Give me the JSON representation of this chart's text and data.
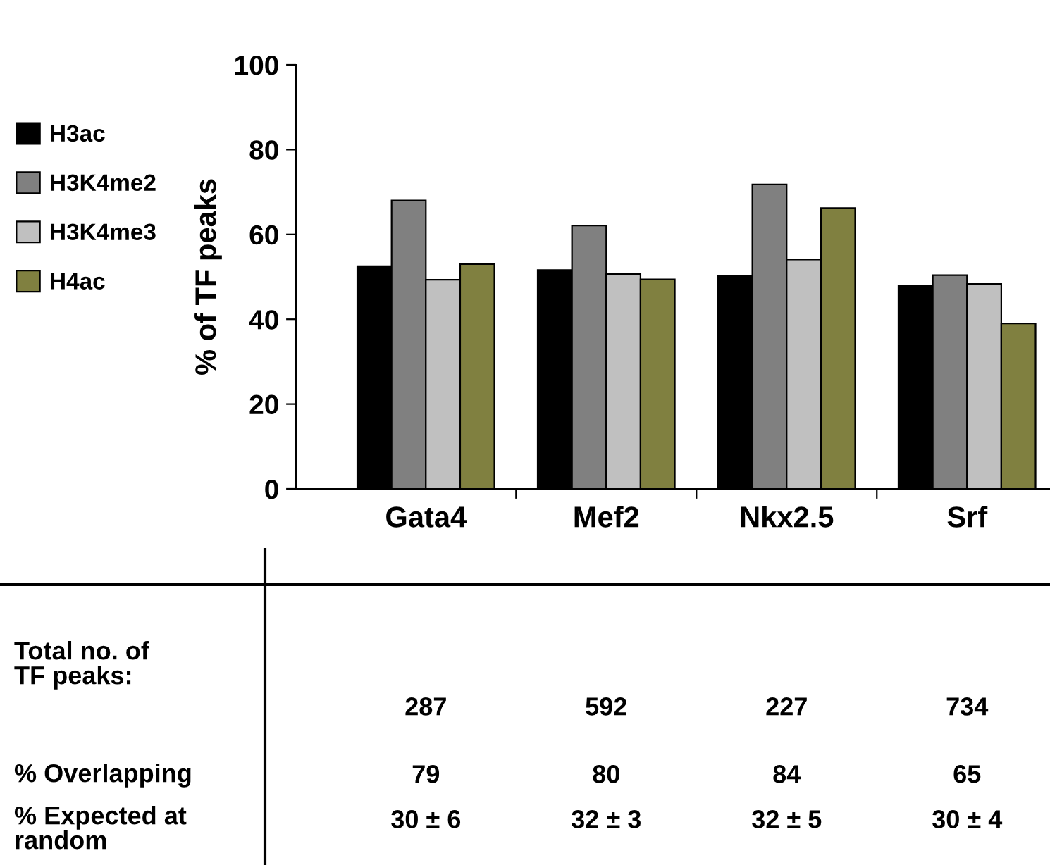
{
  "chart_data": {
    "type": "bar",
    "ylabel": "% of TF peaks",
    "categories": [
      "Gata4",
      "Mef2",
      "Nkx2.5",
      "Srf"
    ],
    "series": [
      {
        "name": "H3ac",
        "color": "#000000",
        "values": [
          52.5,
          51.6,
          50.3,
          48.0
        ]
      },
      {
        "name": "H3K4me2",
        "color": "#808080",
        "values": [
          68.0,
          62.1,
          71.8,
          50.4
        ]
      },
      {
        "name": "H3K4me3",
        "color": "#c0c0c0",
        "values": [
          49.3,
          50.7,
          54.1,
          48.3
        ]
      },
      {
        "name": "H4ac",
        "color": "#808040",
        "values": [
          53.0,
          49.4,
          66.2,
          39.0
        ]
      }
    ],
    "ylim": [
      0,
      100
    ],
    "yticks": [
      0,
      20,
      40,
      60,
      80,
      100
    ],
    "grid": false,
    "legend": "left",
    "annotations": [
      "Total no. of\nTF peaks:",
      "287",
      "592",
      "227",
      "734",
      "% Overlapping",
      "79",
      "80",
      "84",
      "65",
      "% Expected at\nrandom",
      "30 ± 6",
      "32 ± 3",
      "32 ± 5",
      "30 ± 4"
    ]
  }
}
